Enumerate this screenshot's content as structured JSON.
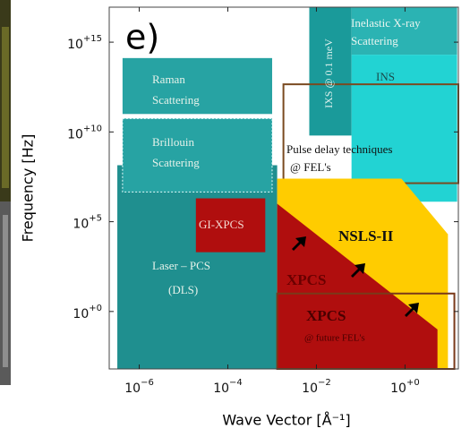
{
  "chart_data": {
    "type": "regions",
    "panel_label": "e)",
    "xlabel": "Wave Vector [Å⁻¹]",
    "ylabel": "Frequency [Hz]",
    "xlog": true,
    "ylog": true,
    "xlim": [
      2.1e-07,
      16
    ],
    "ylim": [
      0.00063,
      8.9e+16
    ],
    "xticks": [
      {
        "value": 1e-06,
        "label": "10",
        "exponent": "−6"
      },
      {
        "value": 0.0001,
        "label": "10",
        "exponent": "−4"
      },
      {
        "value": 0.01,
        "label": "10",
        "exponent": "−2"
      },
      {
        "value": 1,
        "label": "10",
        "exponent": "+0"
      }
    ],
    "yticks": [
      {
        "value": 1,
        "label": "10",
        "exponent": "+0"
      },
      {
        "value": 100000.0,
        "label": "10",
        "exponent": "+5"
      },
      {
        "value": 10000000000.0,
        "label": "10",
        "exponent": "+10"
      },
      {
        "value": 1000000000000000.0,
        "label": "10",
        "exponent": "+15"
      }
    ],
    "regions": [
      {
        "shape": "rect",
        "fill": "#1f8f8f",
        "x": [
          3.2e-07,
          0.0013
        ],
        "y": [
          0.00063,
          140000000.0
        ],
        "label": [
          "Laser – PCS",
          "(DLS)"
        ]
      },
      {
        "shape": "rect",
        "fill": "#27a3a3",
        "x": [
          4.2e-07,
          0.001
        ],
        "y": [
          100000000000.0,
          130000000000000.0
        ],
        "label": [
          "Raman",
          "Scattering"
        ]
      },
      {
        "shape": "rect",
        "fill": "#27a3a3",
        "x": [
          4.2e-07,
          0.001
        ],
        "y": [
          4500000.0,
          56000000000.0
        ],
        "label": [
          "Brillouin",
          "Scattering"
        ]
      },
      {
        "shape": "rect",
        "fill": "#1a9a9a",
        "x": [
          0.0069,
          0.062
        ],
        "y": [
          6300000000.0,
          8.9e+16
        ],
        "label": [
          "IXS @ 0.1 meV"
        ]
      },
      {
        "shape": "rect",
        "fill": "#2bb3b3",
        "x": [
          0.062,
          15
        ],
        "y": [
          200000000000000.0,
          8.9e+16
        ],
        "label": [
          "Inelastic X-ray",
          "Scattering"
        ]
      },
      {
        "shape": "rect",
        "fill": "#22d3d3",
        "x": [
          0.062,
          15
        ],
        "y": [
          1300000.0,
          200000000000000.0
        ],
        "label": [
          "INS"
        ]
      },
      {
        "shape": "rect",
        "fill": "#b00e0e",
        "x": [
          1.9e-05,
          0.0007
        ],
        "y": [
          2000.0,
          2000000.0
        ],
        "label": [
          "GI-XPCS"
        ]
      },
      {
        "shape": "rect",
        "fill": "none",
        "stroke": "#7a4a20",
        "x": [
          0.0018,
          16
        ],
        "y": [
          14000000.0,
          4500000000000.0
        ],
        "label": [
          "Pulse delay techniques",
          "@ FEL's"
        ]
      },
      {
        "shape": "polygon",
        "fill": "#ffcc00",
        "x": [
          0.0013,
          0.83,
          9.3,
          9.3,
          0.0013
        ],
        "y": [
          25000000.0,
          25000000.0,
          20000.0,
          0.00063,
          0.00063
        ],
        "label": [
          "NSLS-II"
        ]
      },
      {
        "shape": "polygon",
        "fill": "#b00e0e",
        "x": [
          0.0013,
          5.4,
          5.4,
          0.0013
        ],
        "y": [
          1000000.0,
          0.1,
          0.00063,
          0.00063
        ],
        "label": [
          "XPCS"
        ]
      },
      {
        "shape": "rect",
        "fill": "none",
        "stroke": "#7a3a1a",
        "x": [
          0.0013,
          13
        ],
        "y": [
          0.00063,
          10
        ],
        "label": [
          "XPCS",
          "@ future FEL's"
        ]
      }
    ]
  }
}
